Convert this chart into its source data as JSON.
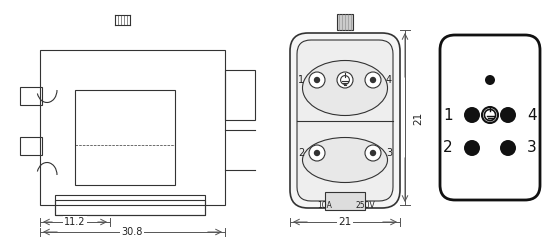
{
  "bg_color": "#ffffff",
  "line_color": "#333333",
  "dim_color": "#555555",
  "text_color": "#222222",
  "dim_11_2": "11.2",
  "dim_30_8": "30.8",
  "dim_21_h": "21",
  "dim_21_w": "21",
  "label_10A": "10A",
  "label_250V": "250V",
  "pin1": "1",
  "pin2": "2",
  "pin3": "3",
  "pin4": "4"
}
